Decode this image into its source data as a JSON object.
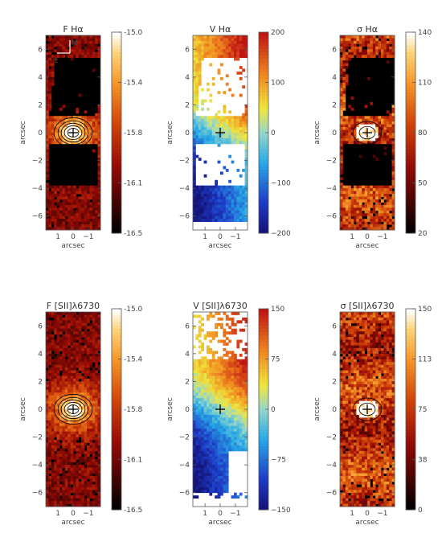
{
  "figure": {
    "units_label": "arcsec",
    "compass": {
      "north": "N",
      "east": "E"
    }
  },
  "chart_data": [
    {
      "type": "heatmap",
      "title": "F Hα",
      "colormap": "heat",
      "cbar_ticks": [
        "-15.0",
        "-15.4",
        "-15.8",
        "-16.1",
        "-16.5"
      ],
      "xticks": [
        "1",
        "0",
        "−1"
      ],
      "yticks": [
        "6",
        "4",
        "2",
        "0",
        "−2",
        "−4",
        "−6"
      ],
      "xlabel": "arcsec",
      "ylabel": "arcsec",
      "xlim": [
        1.8,
        -1.8
      ],
      "ylim": [
        -7,
        7
      ],
      "pattern": "flux",
      "hole": "top_and_bottom",
      "nucleus": [
        0,
        0
      ],
      "contours": true,
      "compass": true
    },
    {
      "type": "heatmap",
      "title": "V Hα",
      "colormap": "rainbow",
      "cbar_ticks": [
        "200",
        "100",
        "0",
        "−100",
        "−200"
      ],
      "xticks": [
        "1",
        "0",
        "−1"
      ],
      "yticks": [
        "6",
        "4",
        "2",
        "0",
        "−2",
        "−4",
        "−6"
      ],
      "xlabel": "arcsec",
      "ylabel": "arcsec",
      "xlim": [
        1.8,
        -1.8
      ],
      "ylim": [
        -7,
        7
      ],
      "pattern": "velocity",
      "hole": "top_and_bottom",
      "nucleus": [
        0,
        0
      ]
    },
    {
      "type": "heatmap",
      "title": "σ Hα",
      "colormap": "heat",
      "cbar_ticks": [
        "140",
        "110",
        "80",
        "50",
        "20"
      ],
      "xticks": [
        "1",
        "0",
        "−1"
      ],
      "yticks": [
        "6",
        "4",
        "2",
        "0",
        "−2",
        "−4",
        "−6"
      ],
      "xlabel": "arcsec",
      "ylabel": "arcsec",
      "xlim": [
        1.8,
        -1.8
      ],
      "ylim": [
        -7,
        7
      ],
      "pattern": "dispersion",
      "hole": "top_and_bottom",
      "nucleus": [
        0,
        0
      ],
      "contours": true
    },
    {
      "type": "heatmap",
      "title": "F [SII]λ6730",
      "colormap": "heat",
      "cbar_ticks": [
        "-15.0",
        "-15.4",
        "-15.8",
        "-16.1",
        "-16.5"
      ],
      "xticks": [
        "1",
        "0",
        "−1"
      ],
      "yticks": [
        "6",
        "4",
        "2",
        "0",
        "−2",
        "−4",
        "−6"
      ],
      "xlabel": "arcsec",
      "ylabel": "arcsec",
      "xlim": [
        1.8,
        -1.8
      ],
      "ylim": [
        -7,
        7
      ],
      "pattern": "flux",
      "hole": "none",
      "nucleus": [
        0,
        0
      ],
      "contours": true
    },
    {
      "type": "heatmap",
      "title": "V [SII]λ6730",
      "colormap": "rainbow",
      "cbar_ticks": [
        "150",
        "75",
        "0",
        "−75",
        "−150"
      ],
      "xticks": [
        "1",
        "0",
        "−1"
      ],
      "yticks": [
        "6",
        "4",
        "2",
        "0",
        "−2",
        "−4",
        "−6"
      ],
      "xlabel": "arcsec",
      "ylabel": "arcsec",
      "xlim": [
        1.8,
        -1.8
      ],
      "ylim": [
        -7,
        7
      ],
      "pattern": "velocity",
      "hole": "partial",
      "nucleus": [
        0,
        0
      ]
    },
    {
      "type": "heatmap",
      "title": "σ [SII]λ6730",
      "colormap": "heat",
      "cbar_ticks": [
        "150",
        "113",
        "75",
        "38",
        "0"
      ],
      "xticks": [
        "1",
        "0",
        "−1"
      ],
      "yticks": [
        "6",
        "4",
        "2",
        "0",
        "−2",
        "−4",
        "−6"
      ],
      "xlabel": "arcsec",
      "ylabel": "arcsec",
      "xlim": [
        1.8,
        -1.8
      ],
      "ylim": [
        -7,
        7
      ],
      "pattern": "dispersion",
      "hole": "none",
      "nucleus": [
        0,
        0
      ],
      "contours": true
    }
  ]
}
